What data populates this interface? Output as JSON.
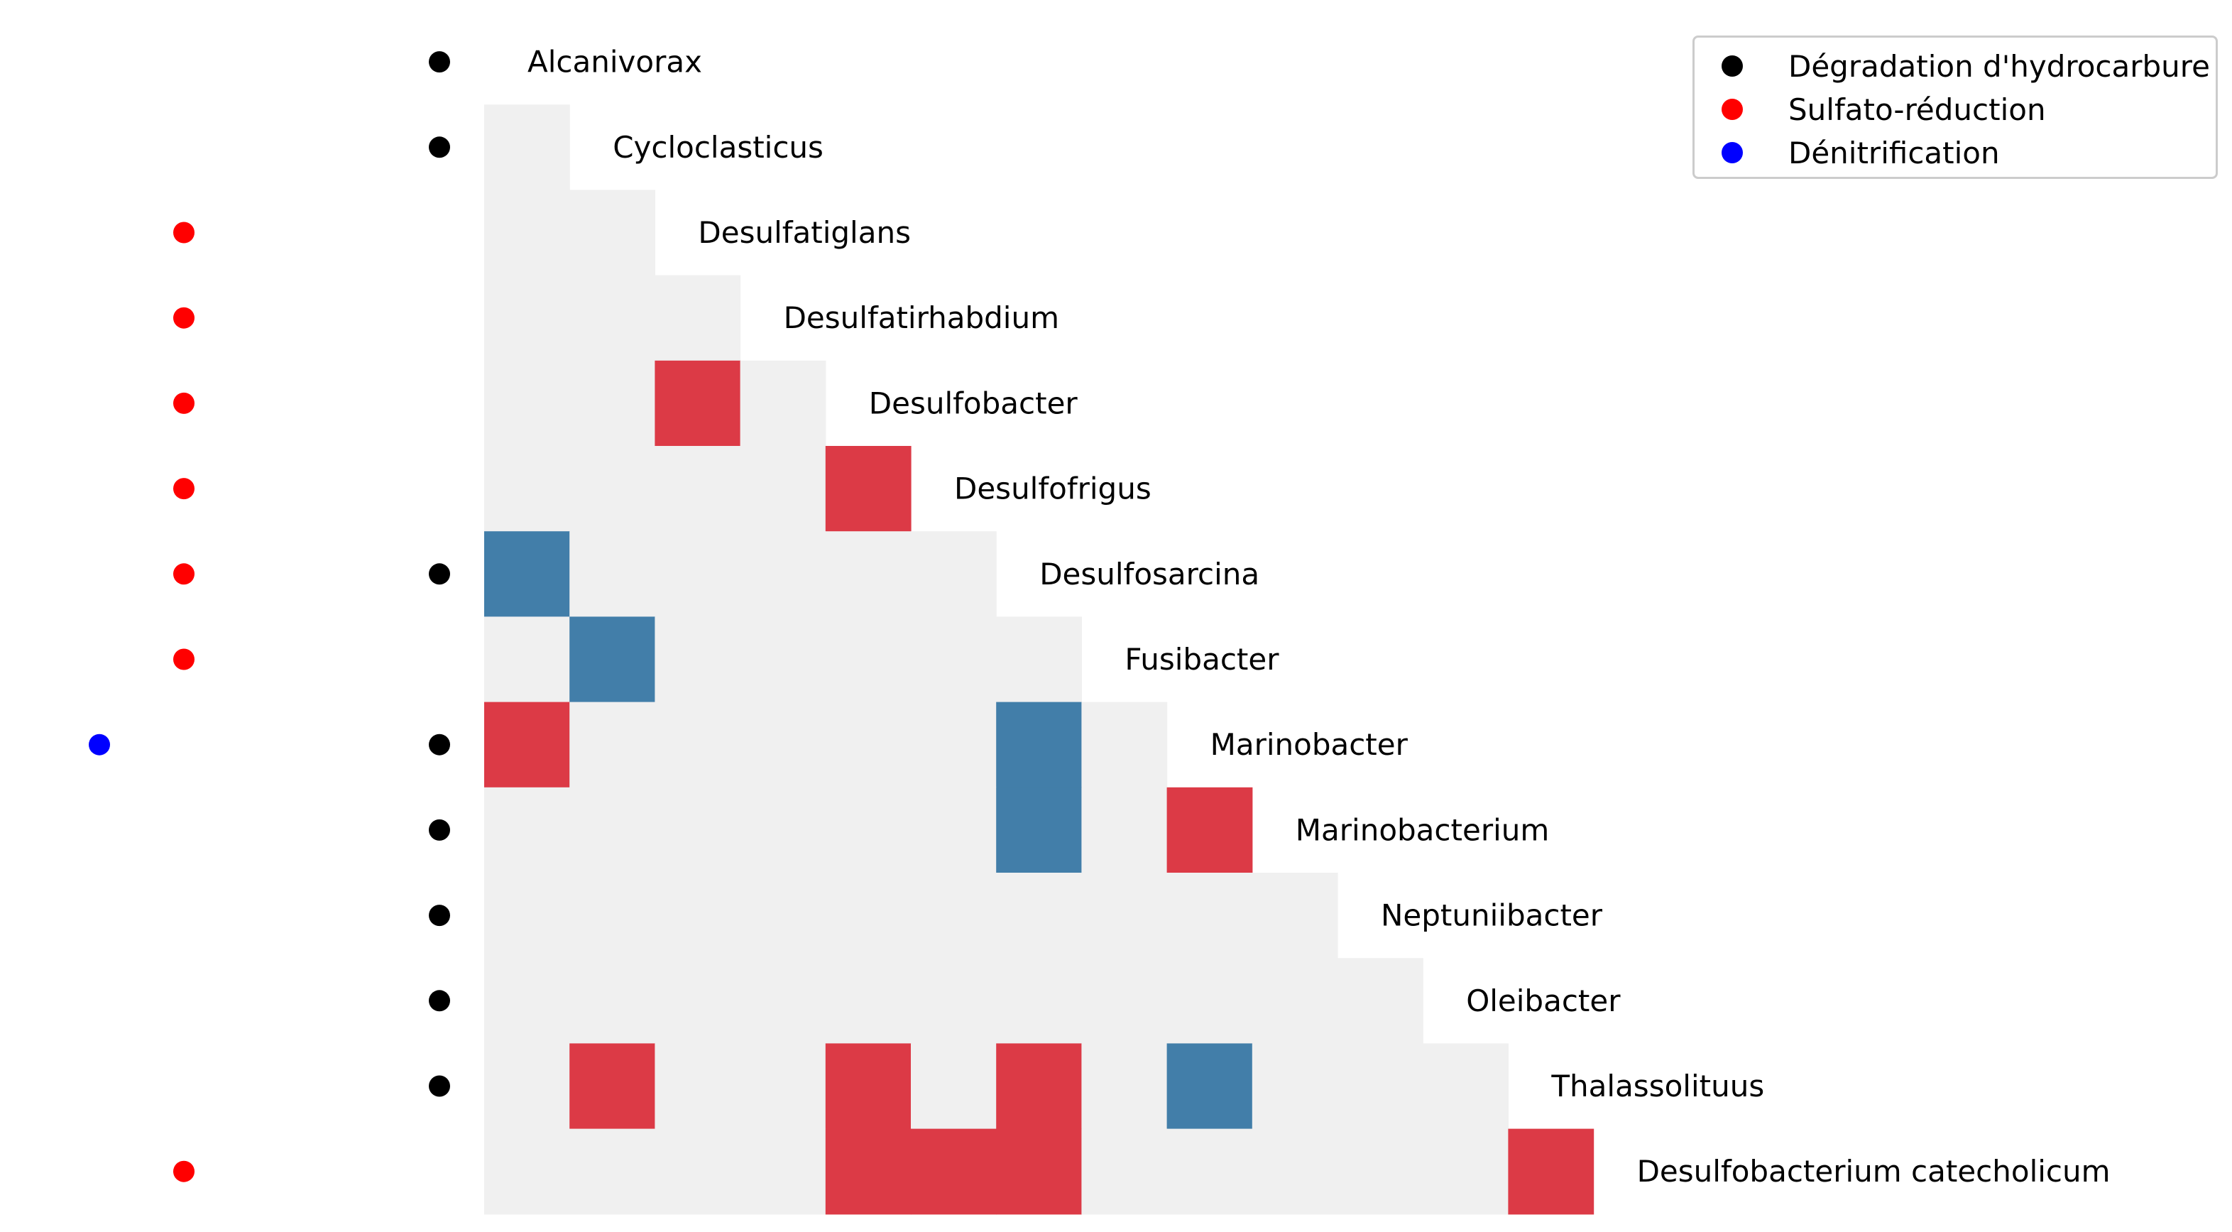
{
  "chart_data": {
    "type": "heatmap",
    "shape": "lower-triangle",
    "rows": [
      "Alcanivorax",
      "Cycloclasticus",
      "Desulfatiglans",
      "Desulfatirhabdium",
      "Desulfobacter",
      "Desulfofrigus",
      "Desulfosarcina",
      "Fusibacter",
      "Marinobacter",
      "Marinobacterium",
      "Neptuniibacter",
      "Oleibacter",
      "Thalassolituus",
      "Desulfobacterium catecholicum"
    ],
    "colors": {
      "none": "#f0f0f0",
      "positive": "#dc3a46",
      "negative": "#427ea9"
    },
    "cells": [
      {
        "row": 4,
        "col": 2,
        "value": "positive"
      },
      {
        "row": 5,
        "col": 4,
        "value": "positive"
      },
      {
        "row": 6,
        "col": 0,
        "value": "negative"
      },
      {
        "row": 7,
        "col": 1,
        "value": "negative"
      },
      {
        "row": 8,
        "col": 0,
        "value": "positive"
      },
      {
        "row": 8,
        "col": 6,
        "value": "negative"
      },
      {
        "row": 9,
        "col": 6,
        "value": "negative"
      },
      {
        "row": 9,
        "col": 8,
        "value": "positive"
      },
      {
        "row": 12,
        "col": 1,
        "value": "positive"
      },
      {
        "row": 12,
        "col": 4,
        "value": "positive"
      },
      {
        "row": 12,
        "col": 6,
        "value": "positive"
      },
      {
        "row": 12,
        "col": 8,
        "value": "negative"
      },
      {
        "row": 13,
        "col": 4,
        "value": "positive"
      },
      {
        "row": 13,
        "col": 5,
        "value": "positive"
      },
      {
        "row": 13,
        "col": 6,
        "value": "positive"
      },
      {
        "row": 13,
        "col": 12,
        "value": "positive"
      }
    ],
    "functions": [
      {
        "name": "Dégradation d'hydrocarbure",
        "color": "#000000",
        "rows": [
          0,
          1,
          6,
          8,
          9,
          10,
          11,
          12
        ]
      },
      {
        "name": "Sulfato-réduction",
        "color": "#ff0000",
        "rows": [
          2,
          3,
          4,
          5,
          6,
          7,
          13
        ]
      },
      {
        "name": "Dénitrification",
        "color": "#0000ff",
        "rows": [
          8
        ]
      }
    ],
    "legend_position": "top-right"
  }
}
